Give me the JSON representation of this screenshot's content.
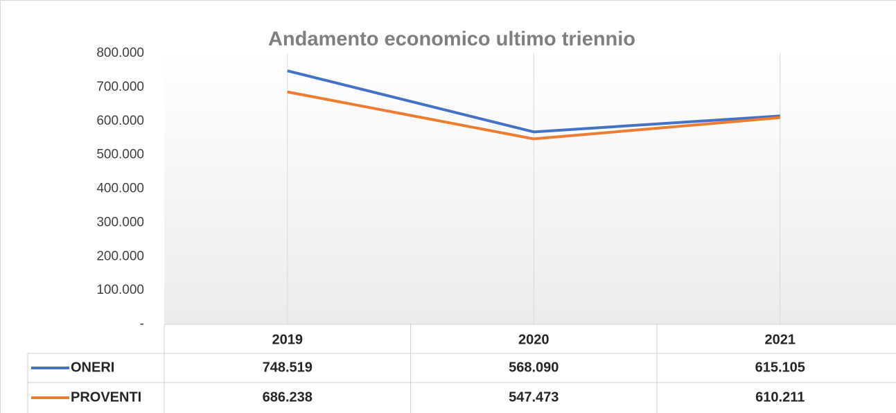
{
  "chart_data": {
    "type": "line",
    "title": "Andamento economico ultimo triennio",
    "categories": [
      "2019",
      "2020",
      "2021"
    ],
    "series": [
      {
        "name": "ONERI",
        "color": "#4472c4",
        "values": [
          748519,
          568090,
          615105
        ],
        "value_labels": [
          "748.519",
          "568.090",
          "615.105"
        ]
      },
      {
        "name": "PROVENTI",
        "color": "#ed7d31",
        "values": [
          686238,
          547473,
          610211
        ],
        "value_labels": [
          "686.238",
          "547.473",
          "610.211"
        ]
      }
    ],
    "ylim": [
      0,
      800000
    ],
    "yticks": [
      {
        "value": 0,
        "label": "-"
      },
      {
        "value": 100000,
        "label": "100.000"
      },
      {
        "value": 200000,
        "label": "200.000"
      },
      {
        "value": 300000,
        "label": "300.000"
      },
      {
        "value": 400000,
        "label": "400.000"
      },
      {
        "value": 500000,
        "label": "500.000"
      },
      {
        "value": 600000,
        "label": "600.000"
      },
      {
        "value": 700000,
        "label": "700.000"
      },
      {
        "value": 800000,
        "label": "800.000"
      }
    ],
    "grid": true
  }
}
